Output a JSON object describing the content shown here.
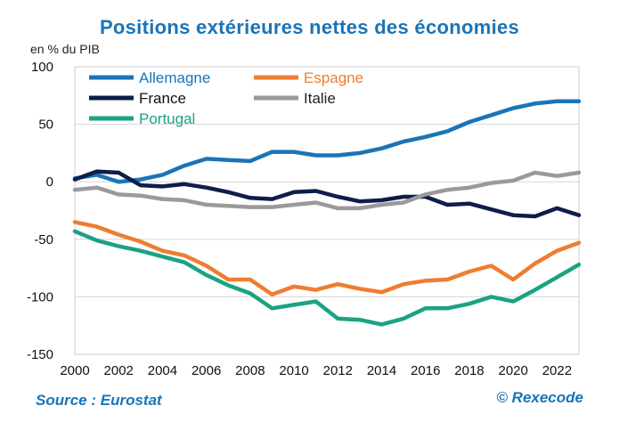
{
  "header": {
    "title": "Positions extérieures nettes des économies",
    "unit": "en % du PIB"
  },
  "footer": {
    "source": "Source :  Eurostat",
    "credit": "© Rexecode"
  },
  "chart_data": {
    "type": "line",
    "title": "Positions extérieures nettes des économies",
    "ylabel": "en % du PIB",
    "xlabel": "",
    "xlim": [
      2000,
      2023
    ],
    "ylim": [
      -150,
      100
    ],
    "x_ticks": [
      "2000",
      "2002",
      "2004",
      "2006",
      "2008",
      "2010",
      "2012",
      "2014",
      "2016",
      "2018",
      "2020",
      "2022"
    ],
    "y_ticks": [
      "100",
      "50",
      "0",
      "-50",
      "-100",
      "-150"
    ],
    "grid": "horizontal",
    "legend_position": "top-left",
    "x": [
      2000,
      2001,
      2002,
      2003,
      2004,
      2005,
      2006,
      2007,
      2008,
      2009,
      2010,
      2011,
      2012,
      2013,
      2014,
      2015,
      2016,
      2017,
      2018,
      2019,
      2020,
      2021,
      2022,
      2023
    ],
    "series": [
      {
        "name": "Allemagne",
        "color": "#1a74b8",
        "values": [
          3,
          6,
          0,
          2,
          6,
          14,
          20,
          19,
          18,
          26,
          26,
          23,
          23,
          25,
          29,
          35,
          39,
          44,
          52,
          58,
          64,
          68,
          70,
          70
        ]
      },
      {
        "name": "Espagne",
        "color": "#ee7d31",
        "values": [
          -35,
          -39,
          -46,
          -52,
          -60,
          -64,
          -73,
          -85,
          -85,
          -98,
          -91,
          -94,
          -89,
          -93,
          -96,
          -89,
          -86,
          -85,
          -78,
          -73,
          -85,
          -71,
          -60,
          -53
        ]
      },
      {
        "name": "France",
        "color": "#0d1e4a",
        "values": [
          2,
          9,
          8,
          -3,
          -4,
          -2,
          -5,
          -9,
          -14,
          -15,
          -9,
          -8,
          -13,
          -17,
          -16,
          -13,
          -13,
          -20,
          -19,
          -24,
          -29,
          -30,
          -23,
          -29
        ]
      },
      {
        "name": "Italie",
        "color": "#9a9a9a",
        "values": [
          -7,
          -5,
          -11,
          -12,
          -15,
          -16,
          -20,
          -21,
          -22,
          -22,
          -20,
          -18,
          -23,
          -23,
          -20,
          -18,
          -11,
          -7,
          -5,
          -1,
          1,
          8,
          5,
          8
        ]
      },
      {
        "name": "Portugal",
        "color": "#1aa383",
        "values": [
          -43,
          -51,
          -56,
          -60,
          -65,
          -70,
          -81,
          -90,
          -97,
          -110,
          -107,
          -104,
          -119,
          -120,
          -124,
          -119,
          -110,
          -110,
          -106,
          -100,
          -104,
          -94,
          -83,
          -72
        ]
      }
    ]
  }
}
